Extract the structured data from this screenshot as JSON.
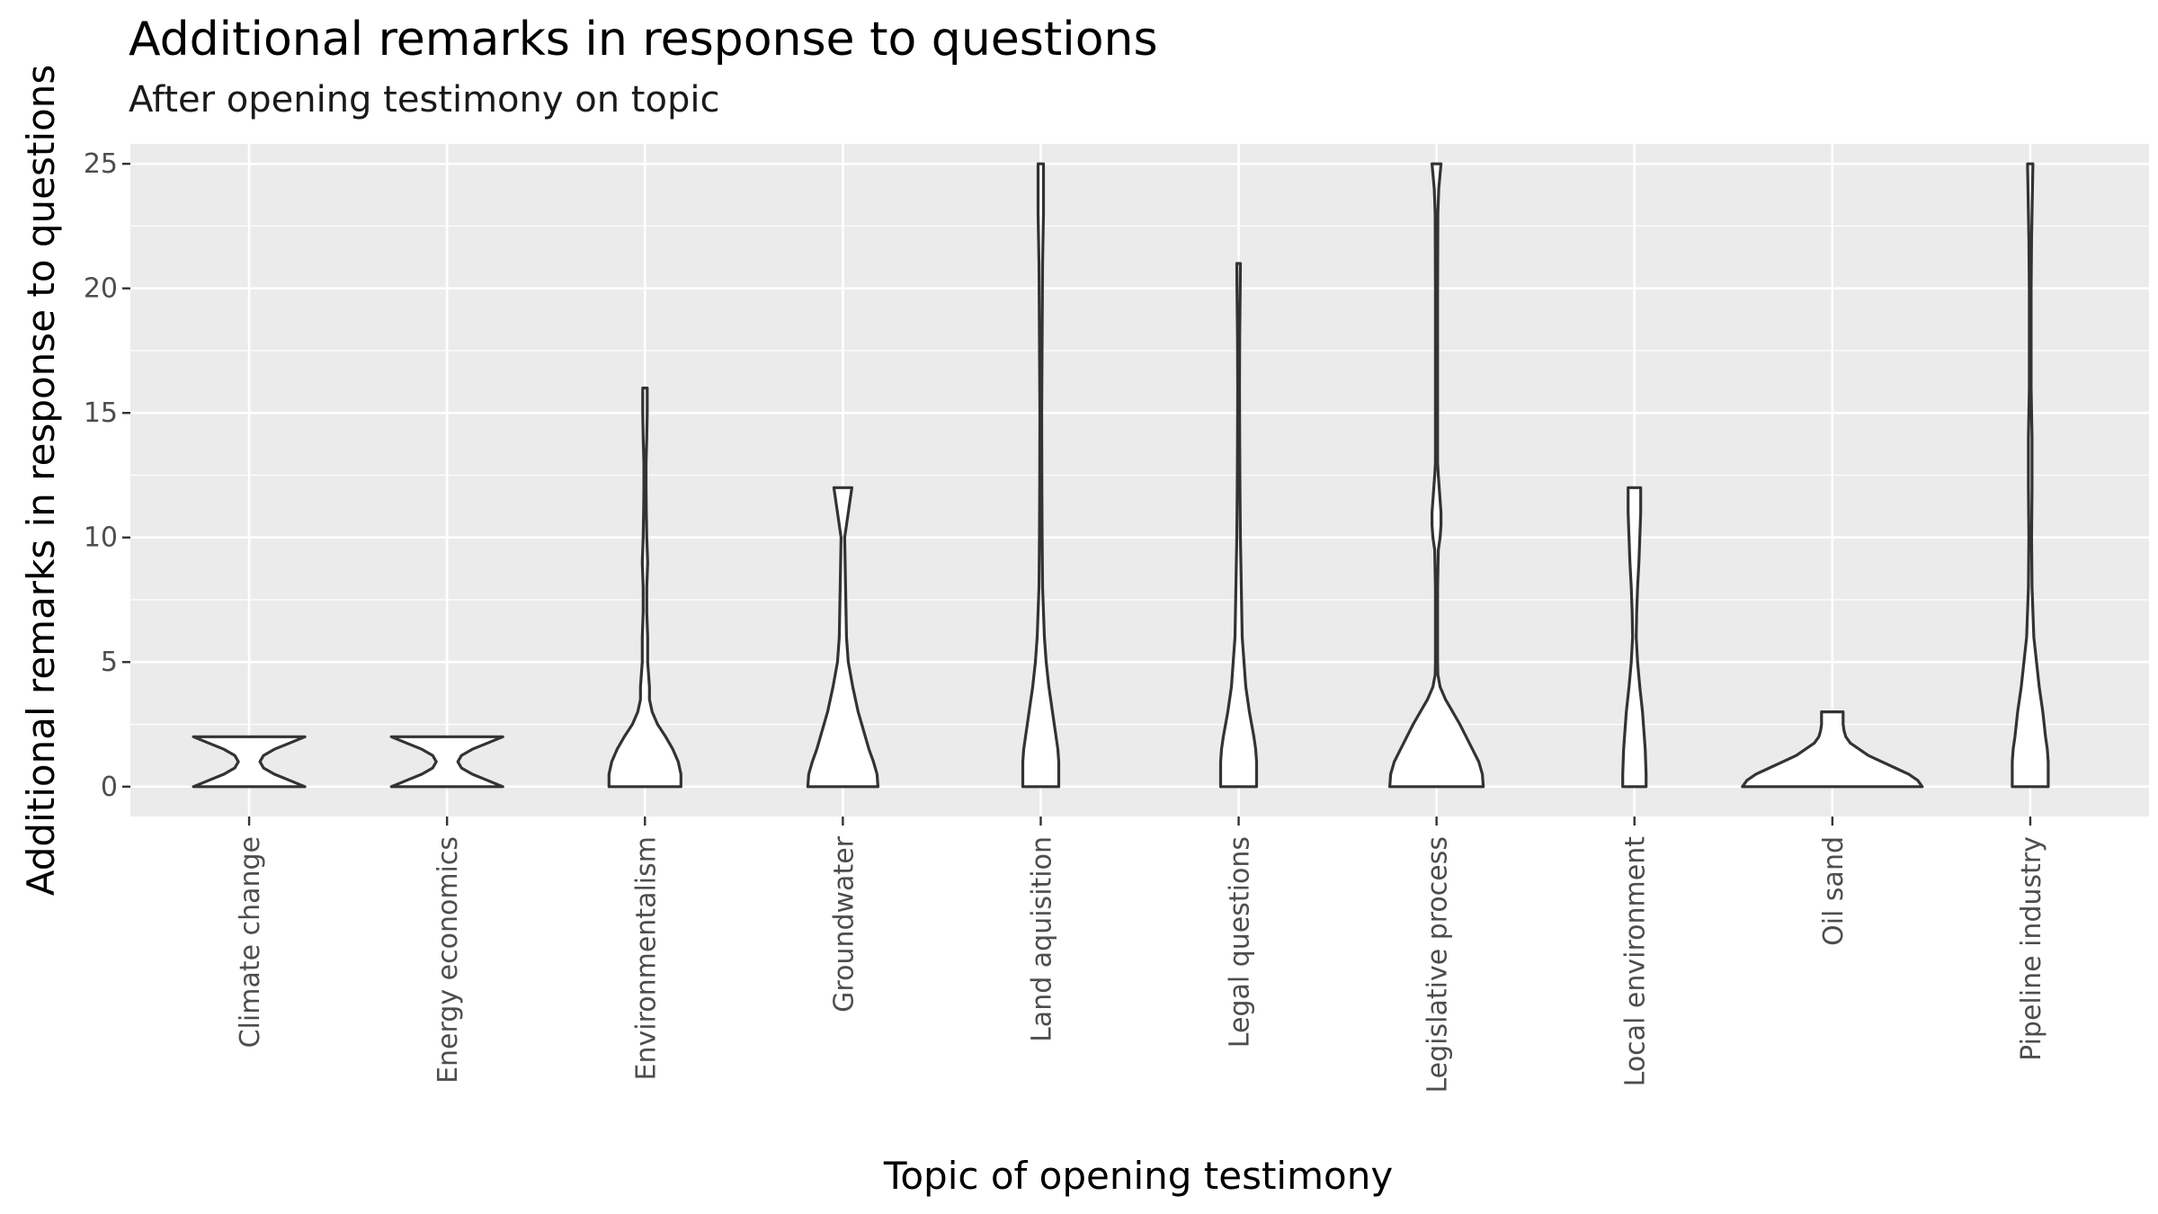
{
  "chart_data": {
    "type": "violin",
    "title": "Additional remarks in response to questions",
    "subtitle": "After opening testimony on topic",
    "xlabel": "Topic of opening testimony",
    "ylabel": "Additional remarks in response to questions",
    "ylim": [
      -1.2,
      25.8
    ],
    "yticks": [
      0,
      5,
      10,
      15,
      20,
      25
    ],
    "grid": true,
    "categories": [
      "Climate change",
      "Energy economics",
      "Environmentalism",
      "Groundwater",
      "Land aquisition",
      "Legal questions",
      "Legislative process",
      "Local environment",
      "Oil sand",
      "Pipeline industry"
    ],
    "violins": [
      {
        "category": "Climate change",
        "profile": [
          [
            0,
            62
          ],
          [
            0.25,
            45
          ],
          [
            0.5,
            28
          ],
          [
            0.75,
            16
          ],
          [
            1.0,
            12
          ],
          [
            1.25,
            16
          ],
          [
            1.5,
            28
          ],
          [
            1.75,
            45
          ],
          [
            2.0,
            62
          ]
        ]
      },
      {
        "category": "Energy economics",
        "profile": [
          [
            0,
            62
          ],
          [
            0.25,
            45
          ],
          [
            0.5,
            28
          ],
          [
            0.75,
            16
          ],
          [
            1.0,
            12
          ],
          [
            1.25,
            16
          ],
          [
            1.5,
            28
          ],
          [
            1.75,
            45
          ],
          [
            2.0,
            62
          ]
        ]
      },
      {
        "category": "Environmentalism",
        "profile": [
          [
            0,
            40
          ],
          [
            0.5,
            40
          ],
          [
            1.0,
            37
          ],
          [
            1.5,
            31
          ],
          [
            2.0,
            23
          ],
          [
            2.5,
            14
          ],
          [
            3.0,
            8
          ],
          [
            3.5,
            5
          ],
          [
            4.0,
            5
          ],
          [
            5.0,
            3
          ],
          [
            6.0,
            3
          ],
          [
            7.0,
            2
          ],
          [
            8.0,
            2
          ],
          [
            9.0,
            3
          ],
          [
            10.0,
            2
          ],
          [
            11,
            1.5
          ],
          [
            12,
            1.2
          ],
          [
            13,
            1.2
          ],
          [
            14,
            2
          ],
          [
            15,
            2.5
          ],
          [
            16,
            2.5
          ]
        ]
      },
      {
        "category": "Groundwater",
        "profile": [
          [
            0,
            39
          ],
          [
            0.5,
            38
          ],
          [
            1.0,
            34
          ],
          [
            1.5,
            29
          ],
          [
            2.0,
            25
          ],
          [
            3.0,
            17
          ],
          [
            4.0,
            11
          ],
          [
            5.0,
            6
          ],
          [
            6.0,
            4
          ],
          [
            7.0,
            3.5
          ],
          [
            8.0,
            3
          ],
          [
            9.0,
            2.5
          ],
          [
            10.0,
            2
          ],
          [
            11.0,
            6
          ],
          [
            12.0,
            10
          ]
        ]
      },
      {
        "category": "Land aquisition",
        "profile": [
          [
            0,
            20
          ],
          [
            0.5,
            20
          ],
          [
            1.0,
            20
          ],
          [
            1.5,
            19
          ],
          [
            2.0,
            17
          ],
          [
            3.0,
            13
          ],
          [
            4.0,
            9
          ],
          [
            5.0,
            6
          ],
          [
            6.0,
            4
          ],
          [
            8.0,
            2
          ],
          [
            10.0,
            1.5
          ],
          [
            12.0,
            1.2
          ],
          [
            15.0,
            1
          ],
          [
            18.0,
            1.5
          ],
          [
            21.0,
            2
          ],
          [
            23.0,
            3
          ],
          [
            24.0,
            3
          ],
          [
            25.0,
            3
          ]
        ]
      },
      {
        "category": "Legal questions",
        "profile": [
          [
            0,
            20
          ],
          [
            0.5,
            20
          ],
          [
            1.0,
            20
          ],
          [
            1.5,
            19
          ],
          [
            2.0,
            17
          ],
          [
            3.0,
            12
          ],
          [
            4.0,
            8
          ],
          [
            5.0,
            6
          ],
          [
            6.0,
            4
          ],
          [
            8.0,
            3
          ],
          [
            10.0,
            2
          ],
          [
            12.0,
            1.5
          ],
          [
            14.0,
            1.2
          ],
          [
            16.0,
            1
          ],
          [
            18.0,
            1.2
          ],
          [
            20.0,
            1.8
          ],
          [
            21.0,
            2
          ]
        ]
      },
      {
        "category": "Legislative process",
        "profile": [
          [
            0,
            52
          ],
          [
            0.5,
            51
          ],
          [
            1.0,
            47
          ],
          [
            1.5,
            40
          ],
          [
            2.0,
            33
          ],
          [
            2.5,
            26
          ],
          [
            3.0,
            18
          ],
          [
            3.5,
            10
          ],
          [
            4.0,
            4
          ],
          [
            4.5,
            1.5
          ],
          [
            5,
            1.2
          ],
          [
            8,
            1.2
          ],
          [
            9.5,
            2
          ],
          [
            10.0,
            4
          ],
          [
            10.5,
            5
          ],
          [
            11.0,
            5
          ],
          [
            11.5,
            4
          ],
          [
            12.5,
            2
          ],
          [
            13,
            1.2
          ],
          [
            20,
            1.2
          ],
          [
            23.0,
            1.5
          ],
          [
            24.0,
            2.5
          ],
          [
            25.0,
            5
          ]
        ]
      },
      {
        "category": "Local environment",
        "profile": [
          [
            0,
            13
          ],
          [
            0.5,
            13
          ],
          [
            1.0,
            12.5
          ],
          [
            1.5,
            12
          ],
          [
            2.0,
            11
          ],
          [
            3.0,
            9
          ],
          [
            4.0,
            6
          ],
          [
            5.0,
            3.5
          ],
          [
            6.0,
            2
          ],
          [
            7.0,
            2.5
          ],
          [
            8.0,
            3.5
          ],
          [
            9.0,
            5
          ],
          [
            10.0,
            6
          ],
          [
            11.0,
            7
          ],
          [
            12.0,
            7
          ]
        ]
      },
      {
        "category": "Oil sand",
        "profile": [
          [
            0,
            100
          ],
          [
            0.25,
            95
          ],
          [
            0.5,
            85
          ],
          [
            0.75,
            70
          ],
          [
            1.0,
            55
          ],
          [
            1.25,
            40
          ],
          [
            1.5,
            30
          ],
          [
            1.75,
            20
          ],
          [
            2.0,
            15
          ],
          [
            2.25,
            13
          ],
          [
            2.5,
            12
          ],
          [
            2.75,
            12
          ],
          [
            3.0,
            12
          ]
        ]
      },
      {
        "category": "Pipeline industry",
        "profile": [
          [
            0,
            20
          ],
          [
            0.5,
            20
          ],
          [
            1.0,
            20
          ],
          [
            1.5,
            19
          ],
          [
            2.0,
            17
          ],
          [
            3.0,
            14
          ],
          [
            4.0,
            10
          ],
          [
            5.0,
            7
          ],
          [
            6.0,
            4
          ],
          [
            8.0,
            2
          ],
          [
            10.0,
            1.5
          ],
          [
            12.0,
            2
          ],
          [
            14.0,
            2
          ],
          [
            16.0,
            1
          ],
          [
            18.0,
            1
          ],
          [
            20.0,
            1
          ],
          [
            22.0,
            1.5
          ],
          [
            24.0,
            2.5
          ],
          [
            25.0,
            3
          ]
        ]
      }
    ]
  }
}
